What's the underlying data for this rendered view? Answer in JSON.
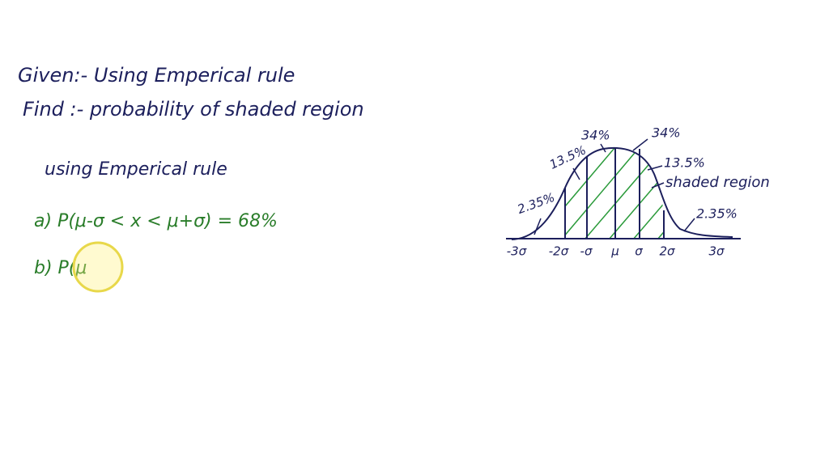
{
  "notes": {
    "given": "Given:- Using Emperical rule",
    "find": "Find :- probability of shaded region",
    "method": "using Emperical rule",
    "part_a": "a) P(μ-σ < x < μ+σ) = 68%",
    "part_b": "b) P(μ"
  },
  "diagram": {
    "labels": {
      "center_left": "34%",
      "center_right": "34%",
      "mid_left": "13.5%",
      "mid_right": "13.5%",
      "tail_left": "2.35%",
      "tail_right": "2.35%",
      "shaded": "shaded region"
    },
    "axis": [
      "-3σ",
      "-2σ",
      "-σ",
      "μ",
      "σ",
      "2σ",
      "3σ"
    ]
  }
}
